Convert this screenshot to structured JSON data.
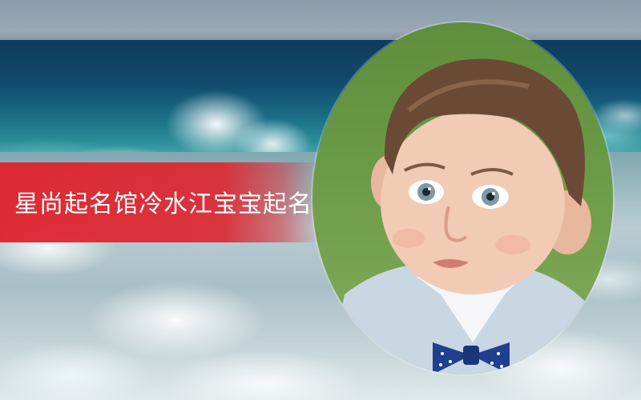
{
  "banner": {
    "text": "星尚起名馆冷水江宝宝起名"
  },
  "colors": {
    "banner_red": "#e1222d",
    "sea_deep": "#0f3a5c",
    "foam": "#dfe8ea",
    "portrait_background": "#6a9a46"
  },
  "photo": {
    "subject": "toddler-portrait",
    "scene": "ocean-waves"
  }
}
